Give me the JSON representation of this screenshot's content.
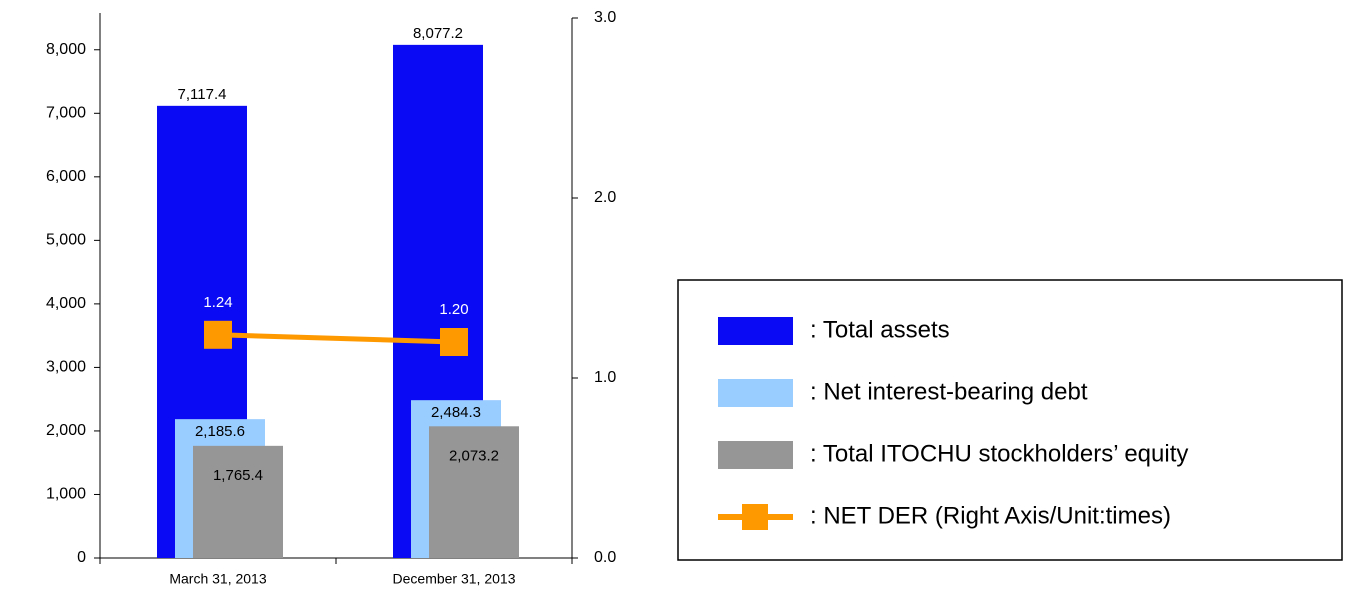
{
  "chart_data": {
    "type": "bar",
    "categories": [
      "March 31, 2013",
      "December 31, 2013"
    ],
    "series": [
      {
        "name": ": Total assets",
        "color": "#0a0af5",
        "values": [
          7117.4,
          8077.2
        ],
        "value_labels": [
          "7,117.4",
          "8,077.2"
        ]
      },
      {
        "name": ": Net interest-bearing debt",
        "color": "#99ccff",
        "values": [
          2185.6,
          2484.3
        ],
        "value_labels": [
          "2,185.6",
          "2,484.3"
        ]
      },
      {
        "name": ": Total ITOCHU stockholders’ equity",
        "color": "#969696",
        "values": [
          1765.4,
          2073.2
        ],
        "value_labels": [
          "1,765.4",
          "2,073.2"
        ]
      },
      {
        "name": ": NET DER (Right Axis/Unit:times)",
        "color": "#ff9900",
        "type": "line",
        "axis": "y2",
        "values": [
          1.24,
          1.2
        ],
        "value_labels": [
          "1.24",
          "1.20"
        ]
      }
    ],
    "ylim": [
      0,
      8500
    ],
    "yticks": [
      0,
      {
        "value": 1000,
        "label": "1,000"
      },
      {
        "value": 2000,
        "label": "2,000"
      },
      {
        "value": 3000,
        "label": "3,000"
      },
      {
        "value": 4000,
        "label": "4,000"
      },
      {
        "value": 5000,
        "label": "5,000"
      },
      {
        "value": 6000,
        "label": "6,000"
      },
      {
        "value": 7000,
        "label": "7,000"
      },
      {
        "value": 8000,
        "label": "8,000"
      }
    ],
    "y2lim": [
      0,
      3
    ],
    "y2ticks": [
      {
        "value": 0,
        "label": "0.0"
      },
      {
        "value": 1,
        "label": "1.0"
      },
      {
        "value": 2,
        "label": "2.0"
      },
      {
        "value": 3,
        "label": "3.0"
      }
    ],
    "legend": "right"
  }
}
